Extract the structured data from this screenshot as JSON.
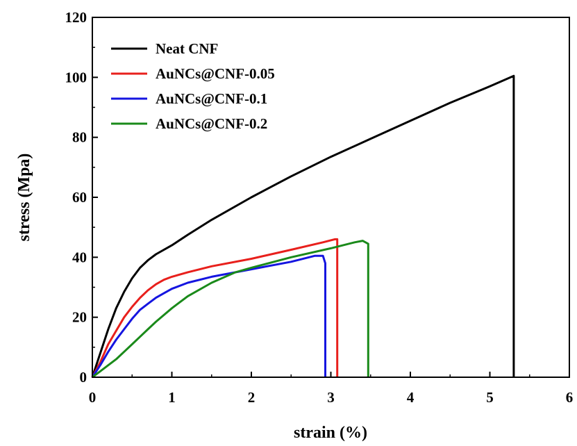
{
  "chart_data": {
    "type": "line",
    "title": "",
    "xlabel": "strain (%)",
    "ylabel": "stress (Mpa)",
    "xlim": [
      0,
      6
    ],
    "ylim": [
      0,
      120
    ],
    "xticks": [
      0,
      1,
      2,
      3,
      4,
      5,
      6
    ],
    "yticks": [
      0,
      20,
      40,
      60,
      80,
      100,
      120
    ],
    "grid": false,
    "legend_position": "top-left",
    "series": [
      {
        "name": "Neat CNF",
        "color": "#000000",
        "x": [
          0,
          0.1,
          0.2,
          0.3,
          0.4,
          0.5,
          0.6,
          0.7,
          0.8,
          1.0,
          1.2,
          1.5,
          2.0,
          2.5,
          3.0,
          3.5,
          4.0,
          4.5,
          5.0,
          5.3,
          5.3
        ],
        "y": [
          0,
          8,
          16,
          23,
          28.5,
          33,
          36.5,
          39,
          41,
          44,
          47.5,
          52.5,
          60,
          67,
          73.5,
          79.5,
          85.5,
          91.5,
          97,
          100.5,
          0
        ]
      },
      {
        "name": "AuNCs@CNF-0.05",
        "color": "#e8201c",
        "x": [
          0,
          0.1,
          0.2,
          0.3,
          0.4,
          0.5,
          0.6,
          0.7,
          0.8,
          0.9,
          1.0,
          1.2,
          1.5,
          2.0,
          2.5,
          2.9,
          3.05,
          3.08,
          3.08
        ],
        "y": [
          0,
          5,
          11,
          15.5,
          20,
          23.5,
          26.5,
          29,
          31,
          32.5,
          33.5,
          35,
          37,
          39.5,
          42.5,
          45,
          46,
          46,
          0
        ]
      },
      {
        "name": "AuNCs@CNF-0.1",
        "color": "#1515e0",
        "x": [
          0,
          0.1,
          0.2,
          0.3,
          0.4,
          0.5,
          0.6,
          0.7,
          0.8,
          0.9,
          1.0,
          1.2,
          1.5,
          2.0,
          2.5,
          2.8,
          2.9,
          2.93,
          2.93
        ],
        "y": [
          0,
          4,
          8.5,
          12.5,
          16,
          19.5,
          22.5,
          24.5,
          26.5,
          28,
          29.5,
          31.5,
          33.5,
          36,
          38.5,
          40.5,
          40.5,
          38,
          0
        ]
      },
      {
        "name": "AuNCs@CNF-0.2",
        "color": "#1a8a1a",
        "x": [
          0,
          0.1,
          0.2,
          0.3,
          0.4,
          0.5,
          0.6,
          0.7,
          0.8,
          1.0,
          1.2,
          1.5,
          1.8,
          2.0,
          2.5,
          3.0,
          3.3,
          3.4,
          3.47,
          3.47
        ],
        "y": [
          0,
          2,
          4,
          6,
          8.5,
          11,
          13.5,
          16,
          18.5,
          23,
          27,
          31.5,
          35,
          36.5,
          40,
          43,
          45,
          45.5,
          44.5,
          0
        ]
      }
    ]
  }
}
